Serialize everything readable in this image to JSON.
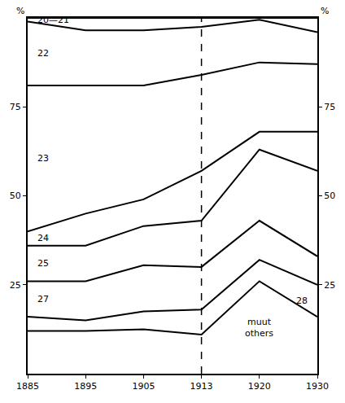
{
  "chart_data": {
    "type": "line",
    "stacked": true,
    "color": "#000000",
    "y_label": "%",
    "categories": [
      "1885",
      "1895",
      "1905",
      "1913",
      "1920",
      "1930"
    ],
    "ylim": [
      0,
      100
    ],
    "yticks": [
      25,
      50,
      75
    ],
    "reference_line": {
      "x": "1913",
      "line_style": "dashed"
    },
    "series": [
      {
        "name": "muut others",
        "values": [
          12,
          12,
          12.5,
          11,
          26,
          16
        ]
      },
      {
        "name": "28",
        "values": [
          4,
          3,
          5,
          7,
          6,
          9
        ]
      },
      {
        "name": "27",
        "values": [
          10,
          11,
          13,
          12,
          11,
          8
        ]
      },
      {
        "name": "25",
        "values": [
          10,
          10,
          11,
          13,
          20,
          24
        ]
      },
      {
        "name": "24",
        "values": [
          4,
          9,
          7.5,
          14,
          5,
          11
        ]
      },
      {
        "name": "23",
        "values": [
          41,
          36,
          32,
          27,
          19.5,
          19
        ]
      },
      {
        "name": "22",
        "values": [
          18,
          15.5,
          15.5,
          13.5,
          12,
          9
        ]
      },
      {
        "name": "20—21",
        "values": [
          1,
          3.5,
          3.5,
          2.5,
          0.5,
          4
        ]
      }
    ]
  }
}
